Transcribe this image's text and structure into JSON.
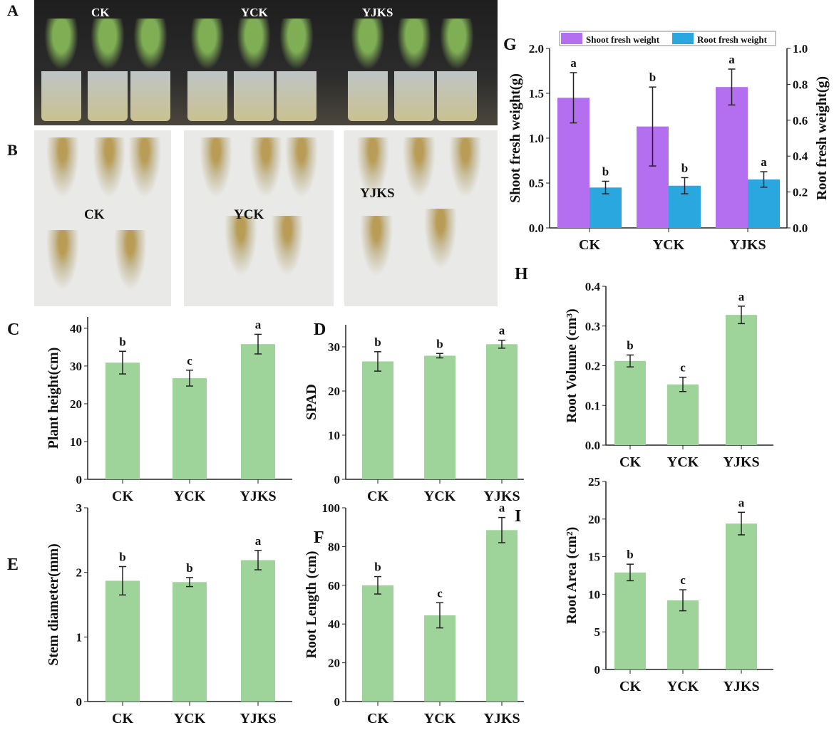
{
  "panel_letters": [
    "A",
    "B",
    "C",
    "D",
    "E",
    "F",
    "G",
    "H",
    "I"
  ],
  "photo_labels": {
    "A": [
      "CK",
      "YCK",
      "YJKS"
    ],
    "B": [
      "CK",
      "YCK",
      "YJKS"
    ]
  },
  "colors": {
    "green": "#9ed49a",
    "purple": "#b46ef0",
    "blue": "#2aa7de"
  },
  "chart_data": [
    {
      "id": "C",
      "type": "bar",
      "categories": [
        "CK",
        "YCK",
        "YJKS"
      ],
      "values": [
        30.9,
        26.8,
        35.8
      ],
      "errors": [
        3.0,
        2.1,
        2.6
      ],
      "letters": [
        "b",
        "c",
        "a"
      ],
      "ylabel": "Plant  height(cm)",
      "ylim": [
        0,
        43
      ],
      "yticks": [
        0,
        10,
        20,
        30,
        40
      ]
    },
    {
      "id": "D",
      "type": "bar",
      "categories": [
        "CK",
        "YCK",
        "YJKS"
      ],
      "values": [
        26.7,
        28.0,
        30.6
      ],
      "errors": [
        2.2,
        0.5,
        0.9
      ],
      "letters": [
        "b",
        "b",
        "a"
      ],
      "ylabel": "SPAD",
      "ylim": [
        0,
        35
      ],
      "yticks": [
        0,
        10,
        20,
        30
      ]
    },
    {
      "id": "E",
      "type": "bar",
      "categories": [
        "CK",
        "YCK",
        "YJKS"
      ],
      "values": [
        1.87,
        1.85,
        2.19
      ],
      "errors": [
        0.22,
        0.07,
        0.15
      ],
      "letters": [
        "b",
        "b",
        "a"
      ],
      "ylabel": "Stem diameter(mm)",
      "ylim": [
        0,
        3
      ],
      "yticks": [
        0,
        1,
        2,
        3
      ]
    },
    {
      "id": "F",
      "type": "bar",
      "categories": [
        "CK",
        "YCK",
        "YJKS"
      ],
      "values": [
        60,
        44.5,
        88.5
      ],
      "errors": [
        4.5,
        6.5,
        6.5
      ],
      "letters": [
        "b",
        "c",
        "a"
      ],
      "ylabel": "Root Length (cm)",
      "ylim": [
        0,
        100
      ],
      "yticks": [
        0,
        20,
        40,
        60,
        80,
        100
      ]
    },
    {
      "id": "H",
      "type": "bar",
      "categories": [
        "CK",
        "YCK",
        "YJKS"
      ],
      "values": [
        0.212,
        0.153,
        0.328
      ],
      "errors": [
        0.015,
        0.018,
        0.022
      ],
      "letters": [
        "b",
        "c",
        "a"
      ],
      "ylabel": "Root Volume (cm³)",
      "ylim": [
        0,
        0.4
      ],
      "yticks": [
        "0.0",
        "0.1",
        "0.2",
        "0.3",
        "0.4"
      ]
    },
    {
      "id": "I",
      "type": "bar",
      "categories": [
        "CK",
        "YCK",
        "YJKS"
      ],
      "values": [
        12.9,
        9.2,
        19.4
      ],
      "errors": [
        1.1,
        1.4,
        1.5
      ],
      "letters": [
        "b",
        "c",
        "a"
      ],
      "ylabel": "Root Area (cm²)",
      "ylim": [
        0,
        25
      ],
      "yticks": [
        0,
        5,
        10,
        15,
        20,
        25
      ]
    },
    {
      "id": "G",
      "type": "bar",
      "categories": [
        "CK",
        "YCK",
        "YJKS"
      ],
      "series": [
        {
          "name": "Shoot fresh weight",
          "axis": "left",
          "values": [
            1.45,
            1.13,
            1.57
          ],
          "errors": [
            0.28,
            0.44,
            0.2
          ],
          "letters": [
            "a",
            "b",
            "a"
          ]
        },
        {
          "name": "Root fresh weight",
          "axis": "right",
          "values": [
            0.225,
            0.235,
            0.27
          ],
          "errors": [
            0.035,
            0.045,
            0.043
          ],
          "letters": [
            "b",
            "b",
            "a"
          ]
        }
      ],
      "ylabel": "Shoot fresh weight(g)",
      "ylabel_right": "Root fresh weight(g)",
      "ylim": [
        0,
        2
      ],
      "ylim_right": [
        0,
        1
      ],
      "yticks": [
        "0.0",
        "0.5",
        "1.0",
        "1.5",
        "2.0"
      ],
      "yticks_right": [
        "0.0",
        "0.2",
        "0.4",
        "0.6",
        "0.8",
        "1.0"
      ],
      "legend": "top"
    }
  ]
}
